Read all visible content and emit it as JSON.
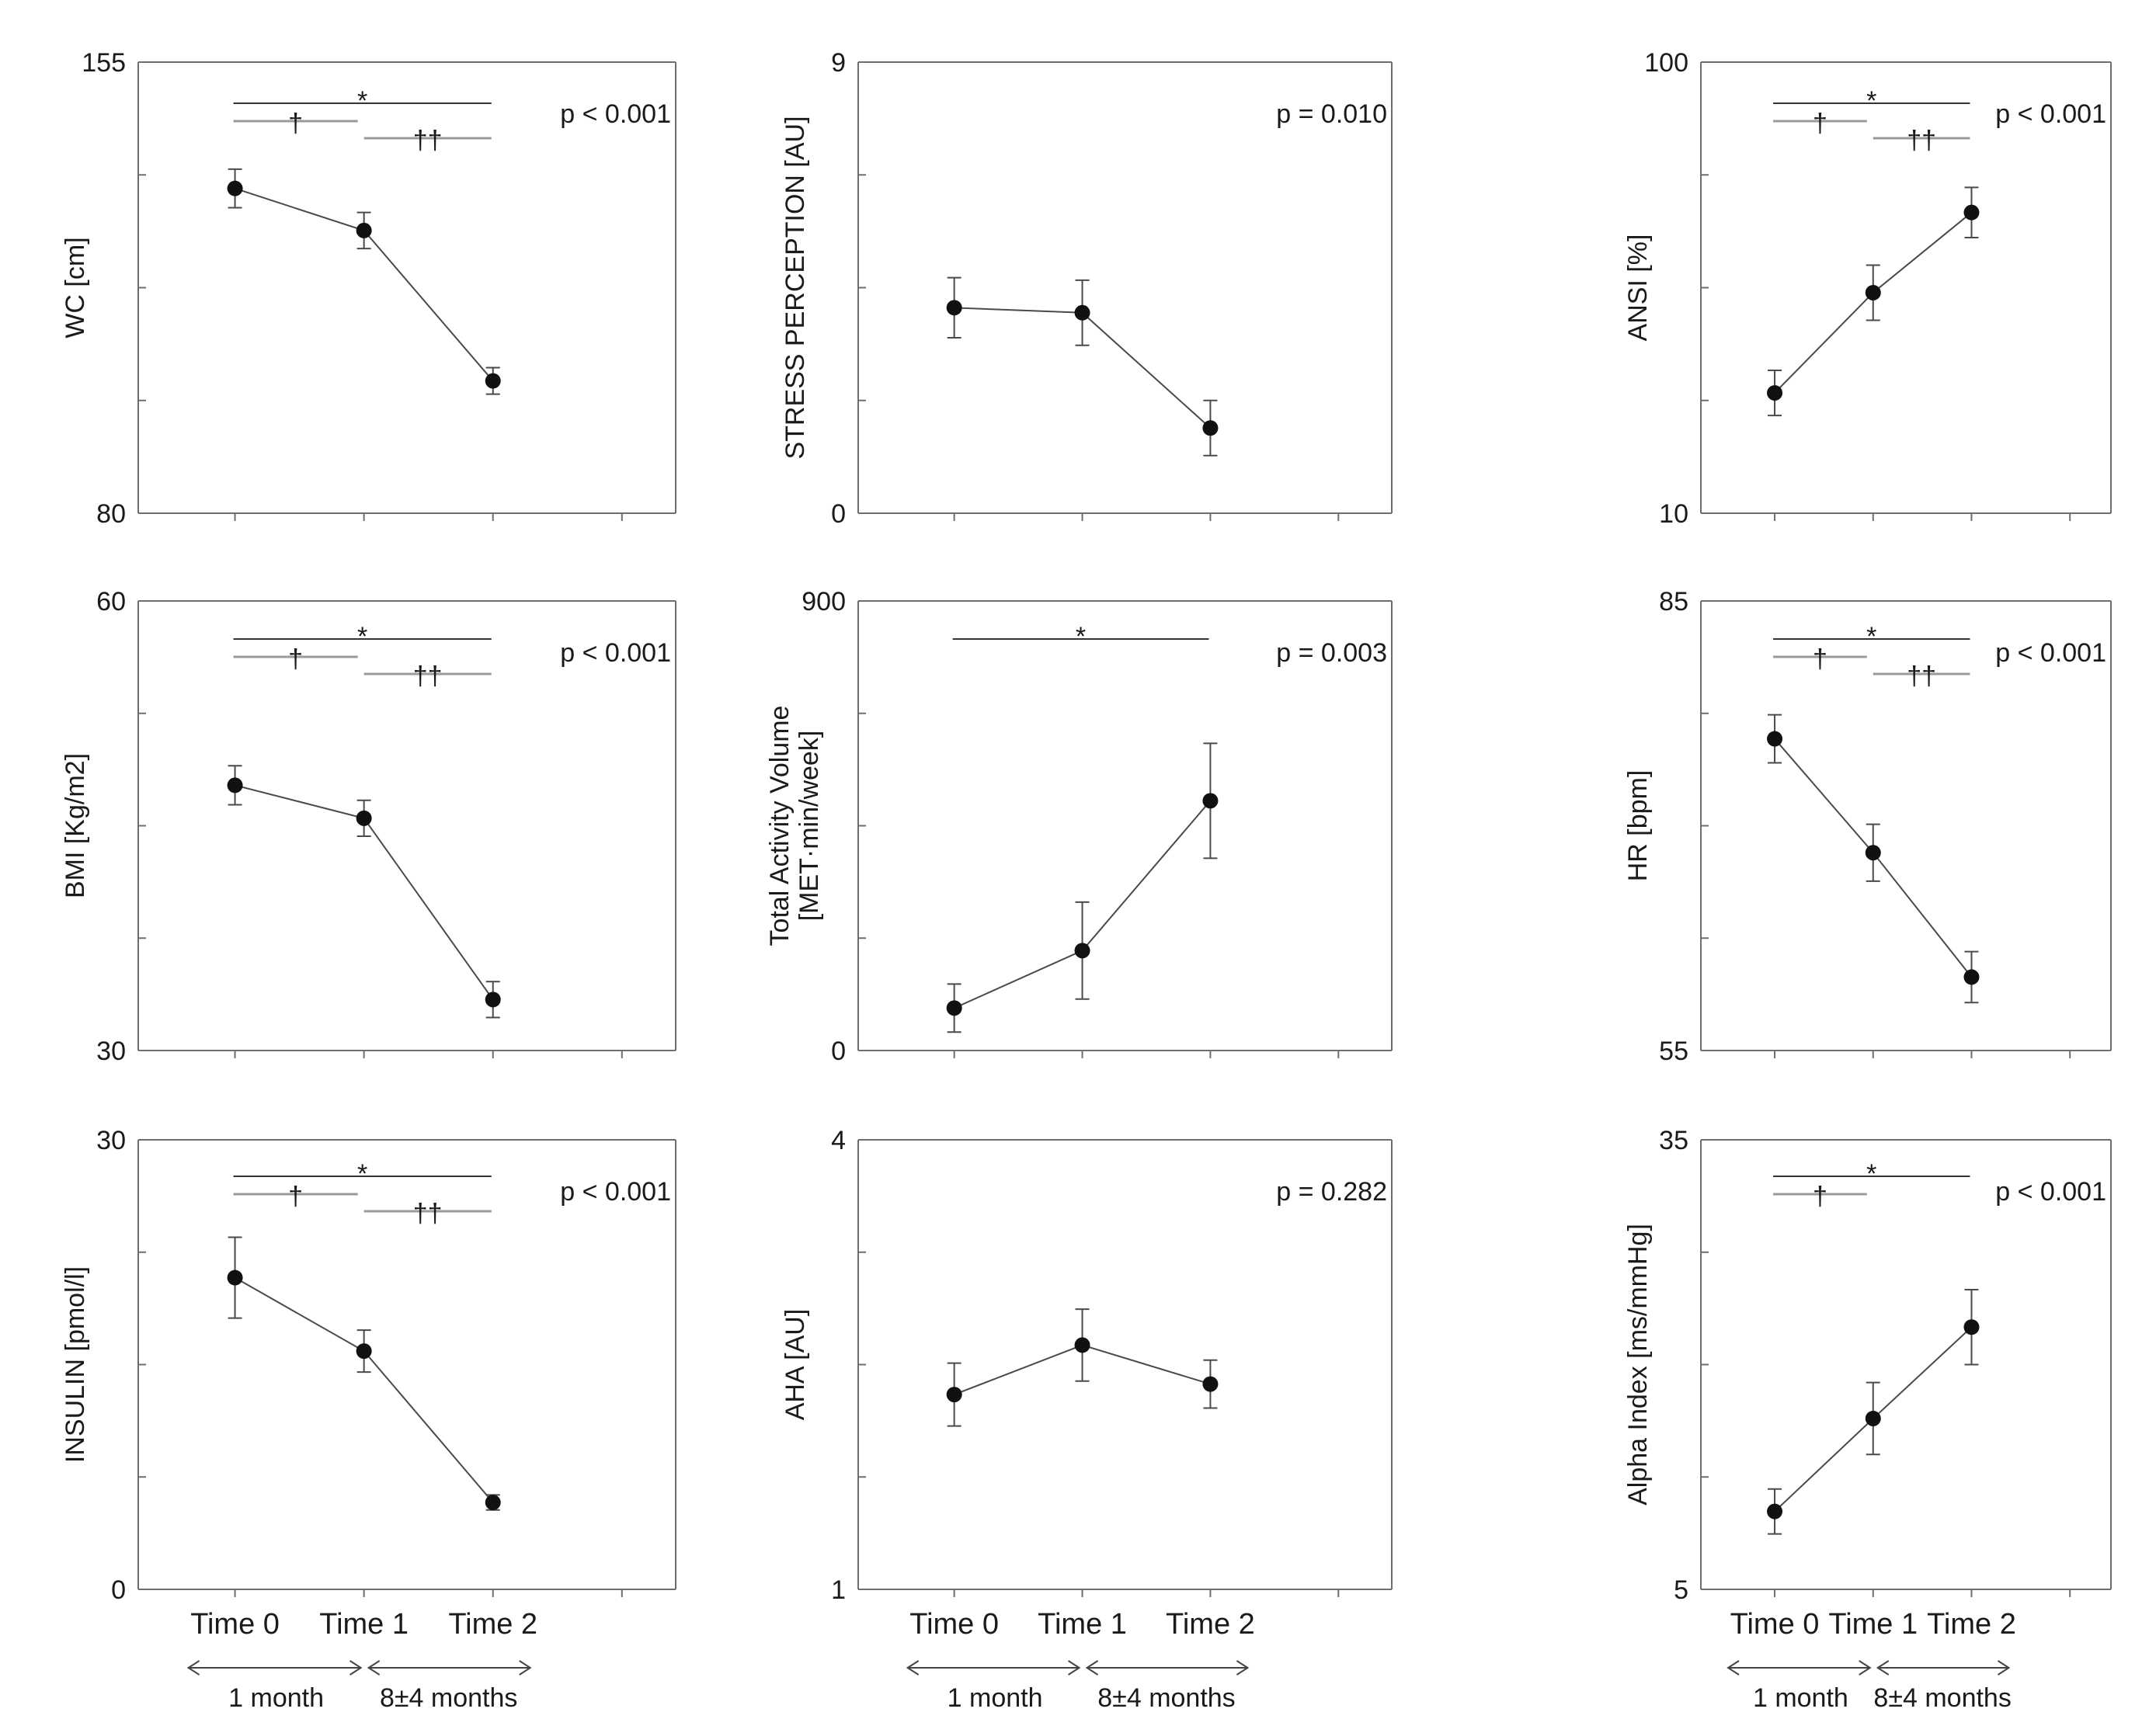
{
  "chart_data": [
    {
      "type": "line",
      "ylabel": "WC [cm]",
      "ylim": [
        80,
        155
      ],
      "categories": [
        "Time 0",
        "Time 1",
        "Time 2"
      ],
      "values": [
        134,
        127,
        102
      ],
      "error": [
        3.2,
        3.0,
        2.2
      ],
      "p_value": "p < 0.001",
      "significance": [
        {
          "symbol": "*",
          "from": "Time 0",
          "to": "Time 2"
        },
        {
          "symbol": "†",
          "from": "Time 0",
          "to": "Time 1"
        },
        {
          "symbol": "††",
          "from": "Time 1",
          "to": "Time 2"
        }
      ]
    },
    {
      "type": "line",
      "ylabel": "STRESS PERCEPTION [AU]",
      "ylim": [
        0,
        9
      ],
      "categories": [
        "Time 0",
        "Time 1",
        "Time 2"
      ],
      "values": [
        4.1,
        4.0,
        1.7
      ],
      "error": [
        0.6,
        0.65,
        0.55
      ],
      "p_value": "p = 0.010",
      "significance": []
    },
    {
      "type": "line",
      "ylabel": "ANSI [%]",
      "ylim": [
        10,
        100
      ],
      "categories": [
        "Time 0",
        "Time 1",
        "Time 2"
      ],
      "values": [
        34,
        54,
        70
      ],
      "error": [
        4.5,
        5.5,
        5.0
      ],
      "p_value": "p < 0.001",
      "significance": [
        {
          "symbol": "*",
          "from": "Time 0",
          "to": "Time 2"
        },
        {
          "symbol": "†",
          "from": "Time 0",
          "to": "Time 1"
        },
        {
          "symbol": "††",
          "from": "Time 1",
          "to": "Time 2"
        }
      ]
    },
    {
      "type": "line",
      "ylabel": "BMI [Kg/m2]",
      "ylim": [
        30,
        60
      ],
      "categories": [
        "Time 0",
        "Time 1",
        "Time 2"
      ],
      "values": [
        47.7,
        45.5,
        33.4
      ],
      "error": [
        1.3,
        1.2,
        1.2
      ],
      "p_value": "p < 0.001",
      "significance": [
        {
          "symbol": "*",
          "from": "Time 0",
          "to": "Time 2"
        },
        {
          "symbol": "†",
          "from": "Time 0",
          "to": "Time 1"
        },
        {
          "symbol": "††",
          "from": "Time 1",
          "to": "Time 2"
        }
      ]
    },
    {
      "type": "line",
      "ylabel": "Total Activity Volume\n[MET·min/week]",
      "ylim": [
        0,
        900
      ],
      "categories": [
        "Time 0",
        "Time 1",
        "Time 2"
      ],
      "values": [
        85,
        200,
        500
      ],
      "error": [
        48,
        97,
        115
      ],
      "p_value": "p = 0.003",
      "significance": [
        {
          "symbol": "*",
          "from": "Time 0",
          "to": "Time 2"
        }
      ]
    },
    {
      "type": "line",
      "ylabel": "HR [bpm]",
      "ylim": [
        55,
        85
      ],
      "categories": [
        "Time 0",
        "Time 1",
        "Time 2"
      ],
      "values": [
        75.8,
        68.2,
        59.9
      ],
      "error": [
        1.6,
        1.9,
        1.7
      ],
      "p_value": "p < 0.001",
      "significance": [
        {
          "symbol": "*",
          "from": "Time 0",
          "to": "Time 2"
        },
        {
          "symbol": "†",
          "from": "Time 0",
          "to": "Time 1"
        },
        {
          "symbol": "††",
          "from": "Time 1",
          "to": "Time 2"
        }
      ]
    },
    {
      "type": "line",
      "ylabel": "INSULIN [pmol/l]",
      "ylim": [
        0,
        30
      ],
      "categories": [
        "Time 0",
        "Time 1",
        "Time 2"
      ],
      "values": [
        20.8,
        15.9,
        5.8
      ],
      "error": [
        2.7,
        1.4,
        0.5
      ],
      "p_value": "p < 0.001",
      "significance": [
        {
          "symbol": "*",
          "from": "Time 0",
          "to": "Time 2"
        },
        {
          "symbol": "†",
          "from": "Time 0",
          "to": "Time 1"
        },
        {
          "symbol": "††",
          "from": "Time 1",
          "to": "Time 2"
        }
      ]
    },
    {
      "type": "line",
      "ylabel": "AHA [AU]",
      "ylim": [
        1,
        4
      ],
      "categories": [
        "Time 0",
        "Time 1",
        "Time 2"
      ],
      "values": [
        2.3,
        2.63,
        2.37
      ],
      "error": [
        0.21,
        0.24,
        0.16
      ],
      "p_value": "p = 0.282",
      "significance": []
    },
    {
      "type": "line",
      "ylabel": "Alpha Index [ms/mmHg]",
      "ylim": [
        5,
        35
      ],
      "categories": [
        "Time 0",
        "Time 1",
        "Time 2"
      ],
      "values": [
        10.2,
        16.4,
        22.5
      ],
      "error": [
        1.5,
        2.4,
        2.5
      ],
      "p_value": "p < 0.001",
      "significance": [
        {
          "symbol": "*",
          "from": "Time 0",
          "to": "Time 2"
        },
        {
          "symbol": "†",
          "from": "Time 0",
          "to": "Time 1"
        }
      ]
    }
  ],
  "x_axis": {
    "time_labels": [
      "Time 0",
      "Time 1",
      "Time 2"
    ],
    "spans": [
      "1 month",
      "8±4 months"
    ]
  },
  "colors": {
    "line": "#4a4a4a",
    "marker": "#111111",
    "axis": "#6e6e6e",
    "sig_dark": "#333333",
    "sig_light": "#9a9a9a"
  }
}
